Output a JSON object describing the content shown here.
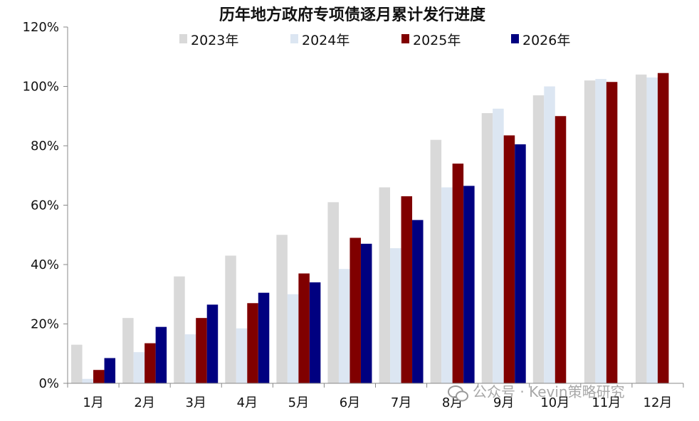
{
  "chart_data": {
    "type": "bar",
    "title": "历年地方政府专项债逐月累计发行进度",
    "xlabel": "",
    "ylabel": "",
    "categories": [
      "1月",
      "2月",
      "3月",
      "4月",
      "5月",
      "6月",
      "7月",
      "8月",
      "9月",
      "10月",
      "11月",
      "12月"
    ],
    "y_ticks": [
      "0%",
      "20%",
      "40%",
      "60%",
      "80%",
      "100%",
      "120%"
    ],
    "ylim": [
      0,
      120
    ],
    "grid": false,
    "legend_position": "top",
    "series": [
      {
        "name": "2023年",
        "color": "#d9d9d9",
        "values": [
          13,
          22,
          36,
          43,
          50,
          61,
          66,
          82,
          91,
          97,
          102,
          104
        ]
      },
      {
        "name": "2024年",
        "color": "#dce6f2",
        "values": [
          1.5,
          10.5,
          16.5,
          18.5,
          30,
          38.5,
          45.5,
          66,
          92.5,
          100,
          102.5,
          103
        ]
      },
      {
        "name": "2025年",
        "color": "#800000",
        "values": [
          4.5,
          13.5,
          22,
          27,
          37,
          49,
          63,
          74,
          83.5,
          90,
          101.5,
          104.5
        ]
      },
      {
        "name": "2026年",
        "color": "#000080",
        "values": [
          8.5,
          19,
          26.5,
          30.5,
          34,
          47,
          55,
          66.5,
          80.5,
          null,
          null,
          null
        ]
      }
    ]
  },
  "watermark": {
    "text": "公众号 · Kevin策略研究",
    "icon": "wechat-icon"
  }
}
